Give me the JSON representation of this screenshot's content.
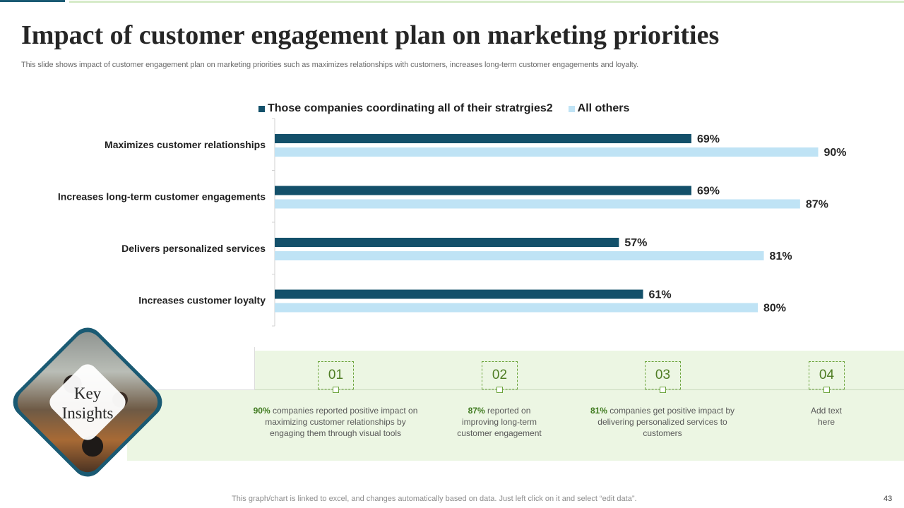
{
  "slide": {
    "title": "Impact of customer engagement plan on marketing priorities",
    "subtitle": "This slide shows impact of customer engagement plan on marketing priorities such as maximizes relationships with customers, increases long-term customer engagements and loyalty.",
    "footer_note": "This graph/chart is linked to excel,  and changes automatically based on data. Just left click on it and select “edit data”.",
    "page_number": "43",
    "colors": {
      "dark_series": "#13506a",
      "light_series": "#bfe3f5",
      "green_accent": "#6aa33a",
      "band": "#ecf6e3"
    }
  },
  "chart_data": {
    "type": "bar",
    "orientation": "horizontal",
    "title": "",
    "xlabel": "",
    "ylabel": "",
    "xlim": [
      0,
      100
    ],
    "grid": false,
    "legend_position": "top",
    "categories": [
      "Maximizes customer relationships",
      "Increases long-term customer engagements",
      "Delivers personalized services",
      "Increases customer loyalty"
    ],
    "series": [
      {
        "name": "Those companies coordinating all of their stratrgies2",
        "color": "#13506a",
        "values": [
          69,
          69,
          57,
          61
        ],
        "labels": [
          "69%",
          "69%",
          "57%",
          "61%"
        ]
      },
      {
        "name": "All others",
        "color": "#bfe3f5",
        "values": [
          90,
          87,
          81,
          80
        ],
        "labels": [
          "90%",
          "87%",
          "81%",
          "80%"
        ]
      }
    ]
  },
  "insights": {
    "heading_line1": "Key",
    "heading_line2": "Insights",
    "items": [
      {
        "number": "01",
        "highlight": "90%",
        "text": " companies reported positive impact on maximizing customer relationships by engaging them through visual tools"
      },
      {
        "number": "02",
        "highlight": "87%",
        "text": " reported on improving long-term customer engagement"
      },
      {
        "number": "03",
        "highlight": "81%",
        "text": " companies get positive impact by delivering personalized services to customers"
      },
      {
        "number": "04",
        "highlight": "",
        "text": "Add text here"
      }
    ]
  }
}
